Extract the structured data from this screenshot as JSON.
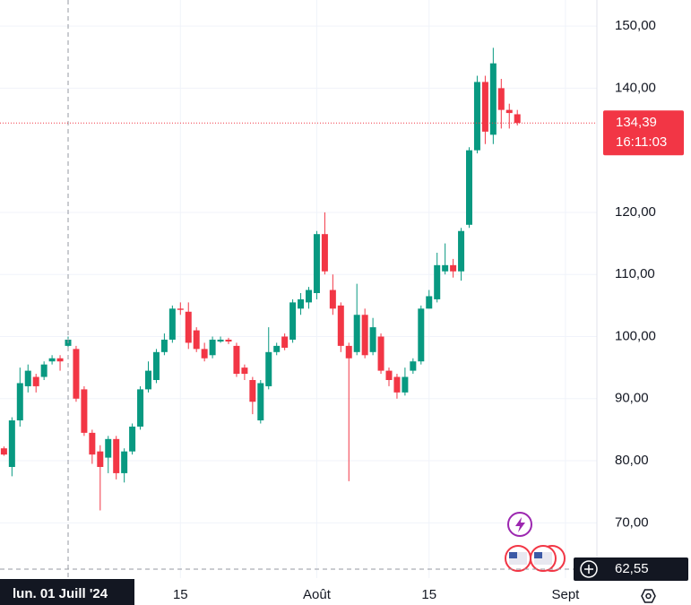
{
  "chart_data": {
    "type": "candlestick",
    "categories": [
      null,
      null,
      null,
      null,
      null,
      null,
      null,
      null,
      "lun. 01 Juill '24",
      null,
      null,
      null,
      null,
      null,
      null,
      null,
      null,
      null,
      null,
      null,
      null,
      null,
      "15",
      null,
      null,
      null,
      null,
      null,
      null,
      null,
      null,
      null,
      null,
      null,
      null,
      null,
      null,
      null,
      null,
      "Août",
      null,
      null,
      null,
      null,
      null,
      null,
      null,
      null,
      null,
      null,
      null,
      null,
      null,
      "15",
      null,
      null,
      null,
      null,
      null,
      null,
      null,
      null,
      null,
      null,
      null,
      null,
      null,
      null,
      null,
      null,
      "Sept"
    ],
    "open": [
      82,
      79,
      86.5,
      92,
      93.5,
      93.5,
      96,
      96.5,
      98.5,
      98,
      91.5,
      84.5,
      81.5,
      80.5,
      83.5,
      78,
      81.5,
      85.5,
      91.5,
      93,
      97.5,
      99.5,
      104.5,
      104,
      101,
      98,
      97,
      99.2,
      99.5,
      98.5,
      95,
      93,
      86.5,
      92,
      97.5,
      100,
      99.5,
      104.5,
      105.5,
      107,
      116.5,
      107.5,
      105,
      98.5,
      97.5,
      103.5,
      97.5,
      100,
      94.5,
      93.5,
      91,
      94.5,
      96,
      104.5,
      106,
      110.5,
      111.5,
      110.5,
      118,
      130,
      141,
      132.5,
      140,
      136.5,
      135.8,
      null,
      null,
      null,
      null,
      null,
      null
    ],
    "high": [
      82.3,
      87,
      95,
      95.5,
      94,
      96,
      97,
      97,
      100,
      98.5,
      92,
      85,
      82.5,
      84,
      84,
      82,
      86,
      92,
      96,
      98,
      100.5,
      105,
      105.5,
      105.5,
      101.5,
      99,
      100,
      100,
      99.8,
      99,
      95.5,
      93.5,
      93,
      101.5,
      99,
      100.5,
      106,
      107,
      108,
      117,
      120,
      110,
      105.5,
      99,
      108.5,
      104.5,
      103,
      100.5,
      95,
      94,
      95,
      96.5,
      105,
      107.5,
      113.5,
      115,
      112.5,
      117.5,
      130.5,
      142,
      142,
      146.5,
      141.5,
      137.5,
      136.5,
      null,
      null,
      null,
      null,
      null,
      null
    ],
    "low": [
      80.8,
      77.5,
      85.5,
      91,
      91,
      93,
      95.5,
      94.5,
      98,
      89.5,
      84,
      79.5,
      72,
      78,
      77,
      76.5,
      81,
      85,
      91,
      92.5,
      97,
      99,
      103.5,
      98,
      97.5,
      96,
      96.5,
      99,
      98.8,
      93.5,
      93,
      87.5,
      86,
      91.5,
      97,
      97.8,
      99,
      103.5,
      104.5,
      106,
      110,
      103.5,
      97.5,
      76.7,
      97,
      96.5,
      97,
      94,
      92,
      90,
      90.5,
      94,
      95.5,
      104.5,
      105.5,
      110,
      109.5,
      109,
      117.5,
      129.5,
      131,
      131,
      133.5,
      133.5,
      134,
      null,
      null,
      null,
      null,
      null,
      null
    ],
    "close": [
      81,
      86.5,
      92.5,
      94.5,
      92,
      95.5,
      96.5,
      96,
      99.5,
      90,
      84.5,
      81,
      79,
      83.5,
      78,
      81.5,
      85.5,
      91.5,
      94.5,
      97.5,
      99.5,
      104.5,
      104.3,
      99,
      98,
      96.5,
      99.5,
      99.5,
      99.2,
      94,
      94,
      89.5,
      92.5,
      97.5,
      98.5,
      98.2,
      105.5,
      106,
      107.5,
      116.5,
      110.5,
      104.5,
      98.5,
      96.5,
      103.5,
      97,
      101.5,
      94.5,
      93,
      91,
      93.5,
      96,
      104.5,
      106.5,
      111.5,
      111.5,
      110.5,
      117,
      130,
      141,
      133,
      144,
      136.5,
      136,
      134.39,
      null,
      null,
      null,
      null,
      null,
      null
    ],
    "up_color": "#089981",
    "down_color": "#f23645",
    "ylim": [
      61.1,
      154.2
    ],
    "yticks": [
      {
        "value": 70,
        "label": "70,00"
      },
      {
        "value": 80,
        "label": "80,00"
      },
      {
        "value": 90,
        "label": "90,00"
      },
      {
        "value": 100,
        "label": "100,00"
      },
      {
        "value": 110,
        "label": "110,00"
      },
      {
        "value": 120,
        "label": "120,00"
      },
      {
        "value": 140,
        "label": "140,00"
      },
      {
        "value": 150,
        "label": "150,00"
      }
    ],
    "last_price": {
      "value": 134.39,
      "label": "134,39"
    },
    "countdown": "16:11:03",
    "crosshair_index": 8,
    "crosshair_price": {
      "value": 62.55,
      "label": "62,55"
    },
    "grid": true
  }
}
